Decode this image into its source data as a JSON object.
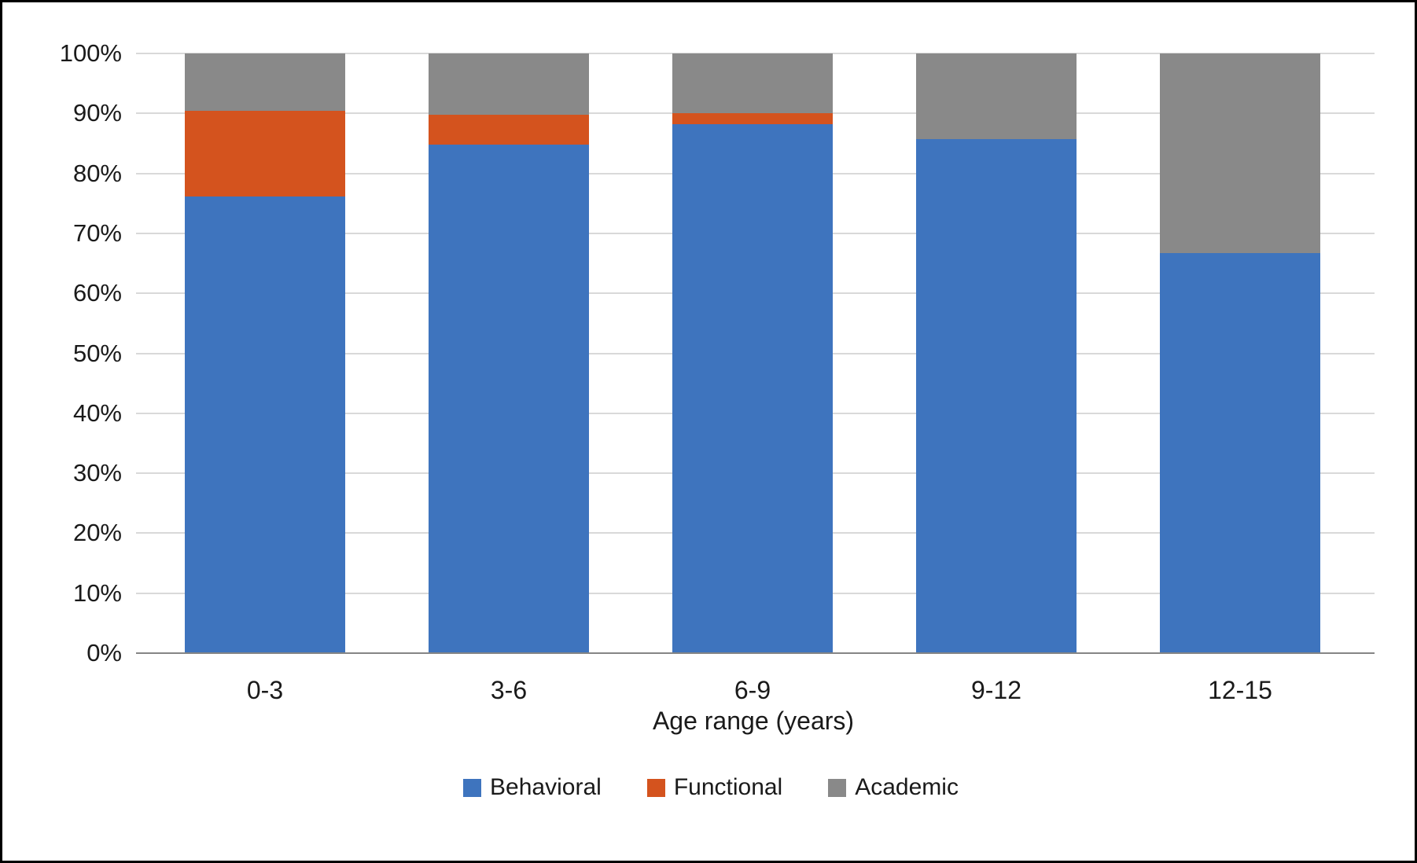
{
  "frame": {
    "background_color": "#ffffff",
    "border_color": "#000000"
  },
  "chart_data": {
    "type": "bar",
    "variant": "stacked-percent-column",
    "title": "",
    "xlabel": "Age range (years)",
    "ylabel": "",
    "categories": [
      "0-3",
      "3-6",
      "6-9",
      "9-12",
      "12-15"
    ],
    "series": [
      {
        "name": "Behavioral",
        "color": "#3e74be",
        "values": [
          76.2,
          84.8,
          88.2,
          85.7,
          66.7
        ]
      },
      {
        "name": "Functional",
        "color": "#d4531e",
        "values": [
          14.3,
          5.0,
          1.8,
          0,
          0
        ]
      },
      {
        "name": "Academic",
        "color": "#898989",
        "values": [
          9.5,
          10.2,
          10.0,
          14.3,
          33.3
        ]
      }
    ],
    "ylim": [
      0,
      100
    ],
    "ytick_step": 10,
    "ytick_labels": [
      "0%",
      "10%",
      "20%",
      "30%",
      "40%",
      "50%",
      "60%",
      "70%",
      "80%",
      "90%",
      "100%"
    ],
    "grid": true,
    "gridline_color": "#d9d9d9",
    "axis_line_color": "#858585",
    "legend_position": "bottom"
  }
}
